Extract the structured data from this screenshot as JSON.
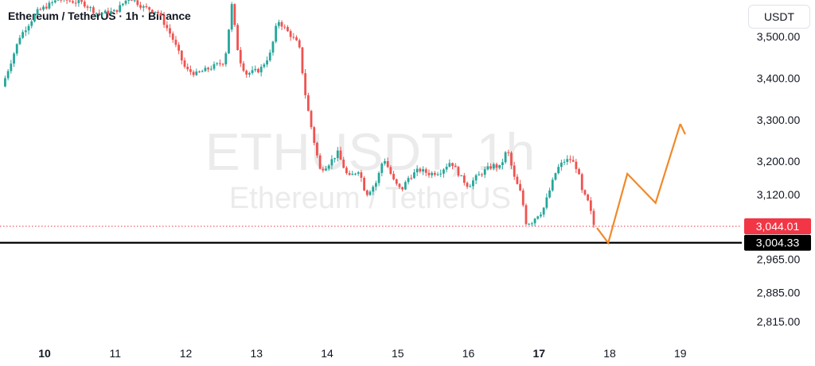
{
  "header": {
    "symbol_title": "Ethereum / TetherUS · 1h · Binance",
    "currency": "USDT"
  },
  "watermark": {
    "ticker": "ETHUSDT, 1h",
    "name": "Ethereum / TetherUS"
  },
  "colors": {
    "up": "#26a69a",
    "down": "#ef5350",
    "projection": "#f0892a",
    "support_line": "#000000",
    "current_price": "#f23645"
  },
  "chart_data": {
    "type": "candlestick",
    "title": "Ethereum / TetherUS · 1h · Binance",
    "xlabel": "",
    "ylabel": "",
    "y_unit": "USDT",
    "x_unit": "day",
    "xlim": [
      9.4,
      20.3
    ],
    "ylim": [
      2770,
      3590
    ],
    "x_ticks": [
      10,
      11,
      12,
      13,
      14,
      15,
      16,
      17,
      18,
      19
    ],
    "x_tick_labels": [
      "10",
      "11",
      "12",
      "13",
      "14",
      "15",
      "16",
      "17",
      "18",
      "19"
    ],
    "x_bold_ticks": [
      "10",
      "17"
    ],
    "y_ticks": [
      3500,
      3400,
      3300,
      3200,
      3120,
      2965,
      2885,
      2815
    ],
    "y_tick_labels": [
      "3,500.00",
      "3,400.00",
      "3,300.00",
      "3,200.00",
      "3,120.00",
      "2,965.00",
      "2,885.00",
      "2,815.00"
    ],
    "grid": false,
    "price_path": [
      [
        9.4,
        3380
      ],
      [
        9.65,
        3500
      ],
      [
        9.9,
        3560
      ],
      [
        10.2,
        3590
      ],
      [
        10.55,
        3580
      ],
      [
        10.75,
        3555
      ],
      [
        11.0,
        3560
      ],
      [
        11.2,
        3595
      ],
      [
        11.4,
        3570
      ],
      [
        11.6,
        3560
      ],
      [
        11.8,
        3500
      ],
      [
        12.0,
        3420
      ],
      [
        12.15,
        3410
      ],
      [
        12.35,
        3425
      ],
      [
        12.55,
        3440
      ],
      [
        12.65,
        3575
      ],
      [
        12.75,
        3450
      ],
      [
        12.85,
        3410
      ],
      [
        13.05,
        3420
      ],
      [
        13.2,
        3460
      ],
      [
        13.3,
        3540
      ],
      [
        13.45,
        3510
      ],
      [
        13.6,
        3480
      ],
      [
        13.7,
        3350
      ],
      [
        13.8,
        3260
      ],
      [
        13.9,
        3180
      ],
      [
        14.0,
        3190
      ],
      [
        14.15,
        3220
      ],
      [
        14.3,
        3160
      ],
      [
        14.45,
        3180
      ],
      [
        14.55,
        3120
      ],
      [
        14.7,
        3150
      ],
      [
        14.8,
        3210
      ],
      [
        14.95,
        3150
      ],
      [
        15.05,
        3130
      ],
      [
        15.15,
        3160
      ],
      [
        15.3,
        3180
      ],
      [
        15.45,
        3170
      ],
      [
        15.6,
        3175
      ],
      [
        15.75,
        3200
      ],
      [
        15.9,
        3160
      ],
      [
        16.0,
        3140
      ],
      [
        16.1,
        3160
      ],
      [
        16.25,
        3180
      ],
      [
        16.35,
        3190
      ],
      [
        16.45,
        3185
      ],
      [
        16.55,
        3230
      ],
      [
        16.65,
        3160
      ],
      [
        16.75,
        3120
      ],
      [
        16.82,
        3050
      ],
      [
        16.9,
        3055
      ],
      [
        16.97,
        3070
      ],
      [
        17.05,
        3080
      ],
      [
        17.15,
        3130
      ],
      [
        17.25,
        3180
      ],
      [
        17.35,
        3200
      ],
      [
        17.45,
        3205
      ],
      [
        17.55,
        3180
      ],
      [
        17.6,
        3130
      ],
      [
        17.7,
        3100
      ],
      [
        17.78,
        3044
      ]
    ],
    "support_level": 3004.33,
    "current_price": 3044.01,
    "price_tags": [
      {
        "label": "3,044.01",
        "value": 3044.01,
        "style": "current"
      },
      {
        "label": "3,004.33",
        "value": 3004.33,
        "style": "support"
      }
    ],
    "projection": {
      "points": [
        [
          17.82,
          3040
        ],
        [
          17.98,
          3004
        ],
        [
          18.25,
          3170
        ],
        [
          18.65,
          3100
        ],
        [
          19.0,
          3290
        ]
      ],
      "arrow_tip": [
        19.0,
        3290
      ],
      "arrow_end": [
        19.07,
        3265
      ]
    }
  }
}
